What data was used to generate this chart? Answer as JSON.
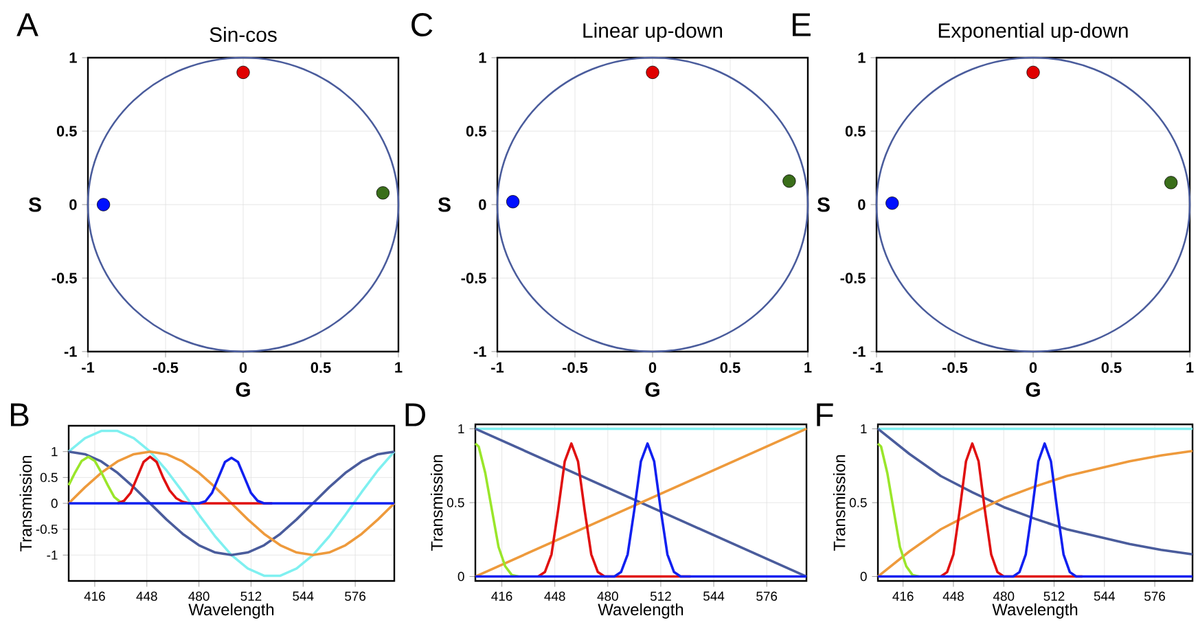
{
  "chart_data": [
    {
      "type": "scatter",
      "title": "Sin-cos",
      "xlabel": "G",
      "ylabel": "S",
      "annotations": [
        "A"
      ],
      "xlim": [
        -1,
        1
      ],
      "ylim": [
        -1,
        1
      ],
      "xticks": [
        -1,
        -0.5,
        0,
        0.5,
        1
      ],
      "yticks": [
        -1,
        -0.5,
        0,
        0.5,
        1
      ],
      "grid": true,
      "marker": "circle",
      "series": [
        {
          "color": "#e00000",
          "x": [
            0
          ],
          "values": [
            0.9
          ]
        },
        {
          "color": "#0010ff",
          "x": [
            -0.9
          ],
          "values": [
            0
          ]
        },
        {
          "color": "#3a6e1a",
          "x": [
            0.9
          ],
          "values": [
            0.08
          ]
        }
      ]
    },
    {
      "type": "scatter",
      "title": "Linear up-down",
      "xlabel": "G",
      "ylabel": "S",
      "annotations": [
        "C"
      ],
      "xlim": [
        -1,
        1
      ],
      "ylim": [
        -1,
        1
      ],
      "xticks": [
        -1,
        -0.5,
        0,
        0.5,
        1
      ],
      "yticks": [
        -1,
        -0.5,
        0,
        0.5,
        1
      ],
      "grid": true,
      "marker": "circle",
      "series": [
        {
          "color": "#e00000",
          "x": [
            0
          ],
          "values": [
            0.9
          ]
        },
        {
          "color": "#0010ff",
          "x": [
            -0.9
          ],
          "values": [
            0.02
          ]
        },
        {
          "color": "#3a6e1a",
          "x": [
            0.88
          ],
          "values": [
            0.16
          ]
        }
      ]
    },
    {
      "type": "scatter",
      "title": "Exponential up-down",
      "xlabel": "G",
      "ylabel": "S",
      "annotations": [
        "E"
      ],
      "xlim": [
        -1,
        1
      ],
      "ylim": [
        -1,
        1
      ],
      "xticks": [
        -1,
        -0.5,
        0,
        0.5,
        1
      ],
      "yticks": [
        -1,
        -0.5,
        0,
        0.5,
        1
      ],
      "grid": true,
      "marker": "circle",
      "series": [
        {
          "color": "#e00000",
          "x": [
            0
          ],
          "values": [
            0.9
          ]
        },
        {
          "color": "#0010ff",
          "x": [
            -0.9
          ],
          "values": [
            0.01
          ]
        },
        {
          "color": "#3a6e1a",
          "x": [
            0.88
          ],
          "values": [
            0.15
          ]
        }
      ]
    },
    {
      "type": "line",
      "xlabel": "Wavelength",
      "ylabel": "Transmission",
      "annotations": [
        "B"
      ],
      "xlim": [
        400,
        600
      ],
      "ylim": [
        -1.5,
        1.5
      ],
      "xticks": [
        416,
        448,
        480,
        512,
        544,
        576
      ],
      "yticks": [
        -1,
        -0.5,
        0,
        0.5,
        1
      ],
      "grid": true,
      "series": [
        {
          "color": "#7ff0f0",
          "x": [
            400,
            410,
            420,
            430,
            440,
            450,
            460,
            470,
            480,
            490,
            500,
            510,
            520,
            530,
            540,
            550,
            560,
            570,
            580,
            590,
            600
          ],
          "values": [
            1,
            1.26,
            1.4,
            1.4,
            1.26,
            1,
            0.64,
            0.22,
            -0.22,
            -0.64,
            -1,
            -1.26,
            -1.4,
            -1.4,
            -1.26,
            -1,
            -0.64,
            -0.22,
            0.22,
            0.64,
            1
          ]
        },
        {
          "color": "#4a5c9c",
          "x": [
            400,
            410,
            420,
            430,
            440,
            450,
            460,
            470,
            480,
            490,
            500,
            510,
            520,
            530,
            540,
            550,
            560,
            570,
            580,
            590,
            600
          ],
          "values": [
            1,
            0.95,
            0.81,
            0.59,
            0.31,
            0,
            -0.31,
            -0.59,
            -0.81,
            -0.95,
            -1,
            -0.95,
            -0.81,
            -0.59,
            -0.31,
            0,
            0.31,
            0.59,
            0.81,
            0.95,
            1
          ]
        },
        {
          "color": "#ee9a3c",
          "x": [
            400,
            410,
            420,
            430,
            440,
            450,
            460,
            470,
            480,
            490,
            500,
            510,
            520,
            530,
            540,
            550,
            560,
            570,
            580,
            590,
            600
          ],
          "values": [
            0,
            0.31,
            0.59,
            0.81,
            0.95,
            1,
            0.95,
            0.81,
            0.59,
            0.31,
            0,
            -0.31,
            -0.59,
            -0.81,
            -0.95,
            -1,
            -0.95,
            -0.81,
            -0.59,
            -0.31,
            0
          ]
        },
        {
          "color": "#9ae62a",
          "x": [
            400,
            404,
            408,
            412,
            416,
            420,
            424,
            428,
            432,
            436
          ],
          "values": [
            0.35,
            0.6,
            0.82,
            0.9,
            0.82,
            0.6,
            0.35,
            0.12,
            0.02,
            0
          ]
        },
        {
          "color": "#e01010",
          "x": [
            430,
            434,
            438,
            442,
            446,
            450,
            454,
            458,
            462,
            466,
            470,
            474,
            525
          ],
          "values": [
            0,
            0.05,
            0.2,
            0.5,
            0.8,
            0.9,
            0.8,
            0.5,
            0.25,
            0.1,
            0.03,
            0,
            0
          ]
        },
        {
          "color": "#1020f0",
          "x": [
            400,
            480,
            484,
            488,
            492,
            496,
            500,
            504,
            508,
            512,
            516,
            520,
            600
          ],
          "values": [
            0,
            0,
            0.04,
            0.2,
            0.5,
            0.8,
            0.88,
            0.8,
            0.5,
            0.2,
            0.05,
            0,
            0
          ]
        }
      ]
    },
    {
      "type": "line",
      "xlabel": "Wavelength",
      "ylabel": "Transmission",
      "annotations": [
        "D"
      ],
      "xlim": [
        400,
        600
      ],
      "ylim": [
        -0.03,
        1.03
      ],
      "xticks": [
        416,
        448,
        480,
        512,
        544,
        576
      ],
      "yticks": [
        0,
        0.5,
        1
      ],
      "grid": true,
      "series": [
        {
          "color": "#7ff0f0",
          "x": [
            400,
            600
          ],
          "values": [
            1,
            1
          ]
        },
        {
          "color": "#4a5c9c",
          "x": [
            400,
            600
          ],
          "values": [
            1,
            0
          ]
        },
        {
          "color": "#ee9a3c",
          "x": [
            400,
            600
          ],
          "values": [
            0,
            1
          ]
        },
        {
          "color": "#9ae62a",
          "x": [
            400,
            402,
            406,
            410,
            414,
            418,
            422,
            426
          ],
          "values": [
            0.9,
            0.88,
            0.7,
            0.45,
            0.2,
            0.07,
            0.01,
            0
          ]
        },
        {
          "color": "#e01010",
          "x": [
            438,
            442,
            446,
            450,
            454,
            458,
            462,
            466,
            470,
            474,
            478,
            530
          ],
          "values": [
            0,
            0.03,
            0.15,
            0.45,
            0.78,
            0.9,
            0.78,
            0.45,
            0.15,
            0.03,
            0,
            0
          ]
        },
        {
          "color": "#1020f0",
          "x": [
            400,
            484,
            488,
            492,
            496,
            500,
            504,
            508,
            512,
            516,
            520,
            524,
            600
          ],
          "values": [
            0,
            0,
            0.03,
            0.15,
            0.45,
            0.78,
            0.9,
            0.78,
            0.45,
            0.15,
            0.03,
            0,
            0
          ]
        }
      ]
    },
    {
      "type": "line",
      "xlabel": "Wavelength",
      "ylabel": "Transmission",
      "annotations": [
        "F"
      ],
      "xlim": [
        400,
        600
      ],
      "ylim": [
        -0.03,
        1.03
      ],
      "xticks": [
        416,
        448,
        480,
        512,
        544,
        576
      ],
      "yticks": [
        0,
        0.5,
        1
      ],
      "grid": true,
      "series": [
        {
          "color": "#7ff0f0",
          "x": [
            400,
            600
          ],
          "values": [
            1,
            1
          ]
        },
        {
          "color": "#4a5c9c",
          "x": [
            400,
            420,
            440,
            460,
            480,
            500,
            520,
            540,
            560,
            580,
            600
          ],
          "values": [
            1,
            0.83,
            0.68,
            0.57,
            0.47,
            0.39,
            0.32,
            0.27,
            0.22,
            0.18,
            0.15
          ]
        },
        {
          "color": "#ee9a3c",
          "x": [
            400,
            420,
            440,
            460,
            480,
            500,
            520,
            540,
            560,
            580,
            600
          ],
          "values": [
            0,
            0.17,
            0.32,
            0.43,
            0.53,
            0.61,
            0.68,
            0.73,
            0.78,
            0.82,
            0.85
          ]
        },
        {
          "color": "#9ae62a",
          "x": [
            400,
            402,
            406,
            410,
            414,
            418,
            422,
            426
          ],
          "values": [
            0.9,
            0.88,
            0.7,
            0.45,
            0.2,
            0.07,
            0.01,
            0
          ]
        },
        {
          "color": "#e01010",
          "x": [
            440,
            444,
            448,
            452,
            456,
            460,
            464,
            468,
            472,
            476,
            480,
            530
          ],
          "values": [
            0,
            0.03,
            0.15,
            0.45,
            0.78,
            0.9,
            0.78,
            0.45,
            0.15,
            0.03,
            0,
            0
          ]
        },
        {
          "color": "#1020f0",
          "x": [
            400,
            486,
            490,
            494,
            498,
            502,
            506,
            510,
            514,
            518,
            522,
            526,
            600
          ],
          "values": [
            0,
            0,
            0.03,
            0.15,
            0.45,
            0.78,
            0.9,
            0.78,
            0.45,
            0.15,
            0.03,
            0,
            0
          ]
        }
      ]
    }
  ]
}
